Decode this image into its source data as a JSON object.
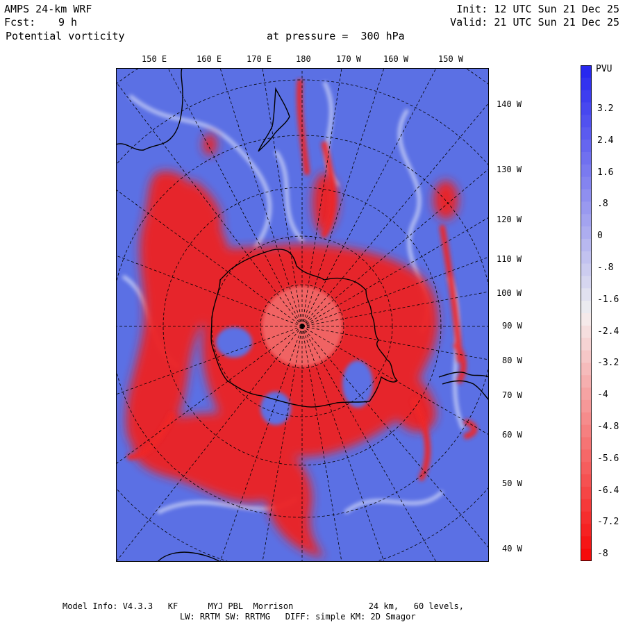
{
  "header": {
    "model_title": "AMPS 24-km WRF",
    "forecast_label": "Fcst:",
    "forecast_value": "9 h",
    "field_name": "Potential vorticity",
    "pressure_text": "at pressure =  300 hPa",
    "init_text": "Init: 12 UTC Sun 21 Dec 25",
    "valid_text": "Valid: 21 UTC Sun 21 Dec 25"
  },
  "map": {
    "projection": "south polar stereographic",
    "top_longitude_labels": [
      "150 E",
      "160 E",
      "170 E",
      "180",
      "170 W",
      "160 W",
      "150 W"
    ],
    "right_longitude_labels": [
      "140 W",
      "130 W",
      "120 W",
      "110 W",
      "100 W",
      "90 W",
      "80 W",
      "70 W",
      "60 W",
      "50 W",
      "40 W"
    ],
    "colors": {
      "positive_blue": "#5a6fe6",
      "negative_red": "#ee2222",
      "coast": "#000000",
      "grid": "#000000"
    }
  },
  "legend": {
    "unit": "PVU",
    "labels": [
      "3.2",
      "2.4",
      "1.6",
      ".8",
      "0",
      "-.8",
      "-1.6",
      "-2.4",
      "-3.2",
      "-4",
      "-4.8",
      "-5.6",
      "-6.4",
      "-7.2",
      "-8"
    ]
  },
  "footer": {
    "line1": "Model Info: V4.3.3   KF      MYJ PBL  Morrison               24 km,   60 levels,",
    "line2": "LW: RRTM SW: RRTMG   DIFF: simple KM: 2D Smagor"
  }
}
